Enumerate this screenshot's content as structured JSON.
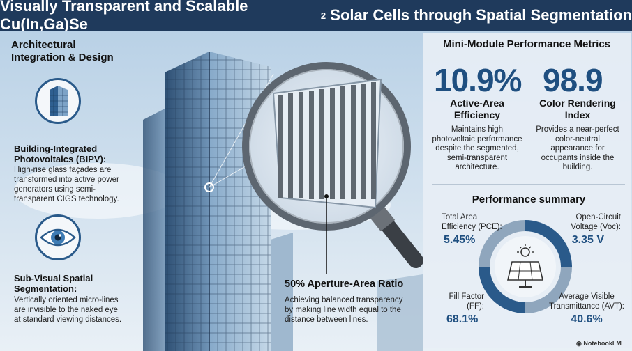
{
  "title": {
    "main": "Visually Transparent and Scalable Cu(In,Ga)Se",
    "subscript": "2",
    "rest": " Solar Cells through Spatial Segmentation"
  },
  "left": {
    "heading_line1": "Architectural",
    "heading_line2": "Integration & Design",
    "item1": {
      "title_line1": "Building-Integrated",
      "title_line2": "Photovoltaics (BIPV):",
      "desc": [
        "High-rise glass façades are",
        "transformed into active power",
        "generators using semi-",
        "transparent CIGS technology."
      ],
      "icon": "building-icon"
    },
    "item2": {
      "title_line1": "Sub-Visual Spatial",
      "title_line2": "Segmentation:",
      "desc": [
        "Vertically oriented micro-lines",
        "are invisible to the naked eye",
        "at standard viewing distances."
      ],
      "icon": "eye-icon"
    }
  },
  "center": {
    "aperture_title": "50% Aperture-Area Ratio",
    "aperture_desc": [
      "Achieving balanced transparency",
      "by making line width equal to the",
      "distance between lines."
    ]
  },
  "metrics": {
    "title": "Mini-Module Performance Metrics",
    "m1": {
      "value": "10.9%",
      "label_line1": "Active-Area",
      "label_line2": "Efficiency",
      "desc": [
        "Maintains high",
        "photovoltaic performance",
        "despite the segmented,",
        "semi-transparent",
        "architecture."
      ]
    },
    "m2": {
      "value": "98.9",
      "label_line1": "Color Rendering",
      "label_line2": "Index",
      "desc": [
        "Provides a near-perfect",
        "color-neutral",
        "appearance for",
        "occupants inside the",
        "building."
      ]
    }
  },
  "summary": {
    "title": "Performance summary",
    "pce": {
      "label_line1": "Total Area",
      "label_line2": "Efficiency (PCE):",
      "value": "5.45%"
    },
    "voc": {
      "label_line1": "Open-Circuit",
      "label_line2": "Voltage (Voc):",
      "value": "3.35 V"
    },
    "ff": {
      "label_line1": "Fill Factor",
      "label_line2": "(FF):",
      "value": "68.1%"
    },
    "avt": {
      "label_line1": "Average Visible",
      "label_line2": "Transmittance (AVT):",
      "value": "40.6%"
    }
  },
  "brand": "NotebookLM",
  "colors": {
    "accent": "#1f4f80",
    "title_bg": "#1f3a5c",
    "ring_dark": "#2a5a8a",
    "ring_light": "#8fa6bd"
  }
}
